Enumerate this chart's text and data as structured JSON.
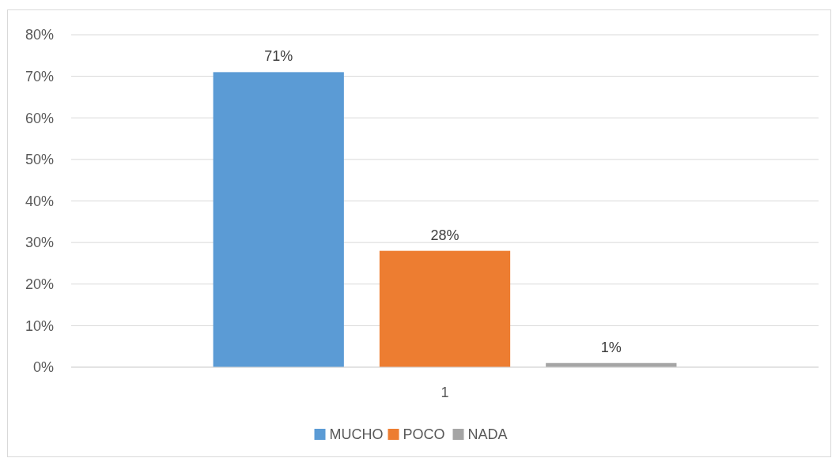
{
  "chart_data": {
    "type": "bar",
    "categories": [
      "1"
    ],
    "series": [
      {
        "name": "MUCHO",
        "color": "#5b9bd5",
        "values": [
          71
        ],
        "value_labels": [
          "71%"
        ]
      },
      {
        "name": "POCO",
        "color": "#ed7d31",
        "values": [
          28
        ],
        "value_labels": [
          "28%"
        ]
      },
      {
        "name": "NADA",
        "color": "#a5a5a5",
        "values": [
          1
        ],
        "value_labels": [
          "1%"
        ]
      }
    ],
    "ylim": [
      0,
      80
    ],
    "yticks": [
      {
        "value": 0,
        "label": "0%"
      },
      {
        "value": 10,
        "label": "10%"
      },
      {
        "value": 20,
        "label": "20%"
      },
      {
        "value": 30,
        "label": "30%"
      },
      {
        "value": 40,
        "label": "40%"
      },
      {
        "value": 50,
        "label": "50%"
      },
      {
        "value": 60,
        "label": "60%"
      },
      {
        "value": 70,
        "label": "70%"
      },
      {
        "value": 80,
        "label": "80%"
      }
    ],
    "grid": "y",
    "legend": "bottom"
  }
}
